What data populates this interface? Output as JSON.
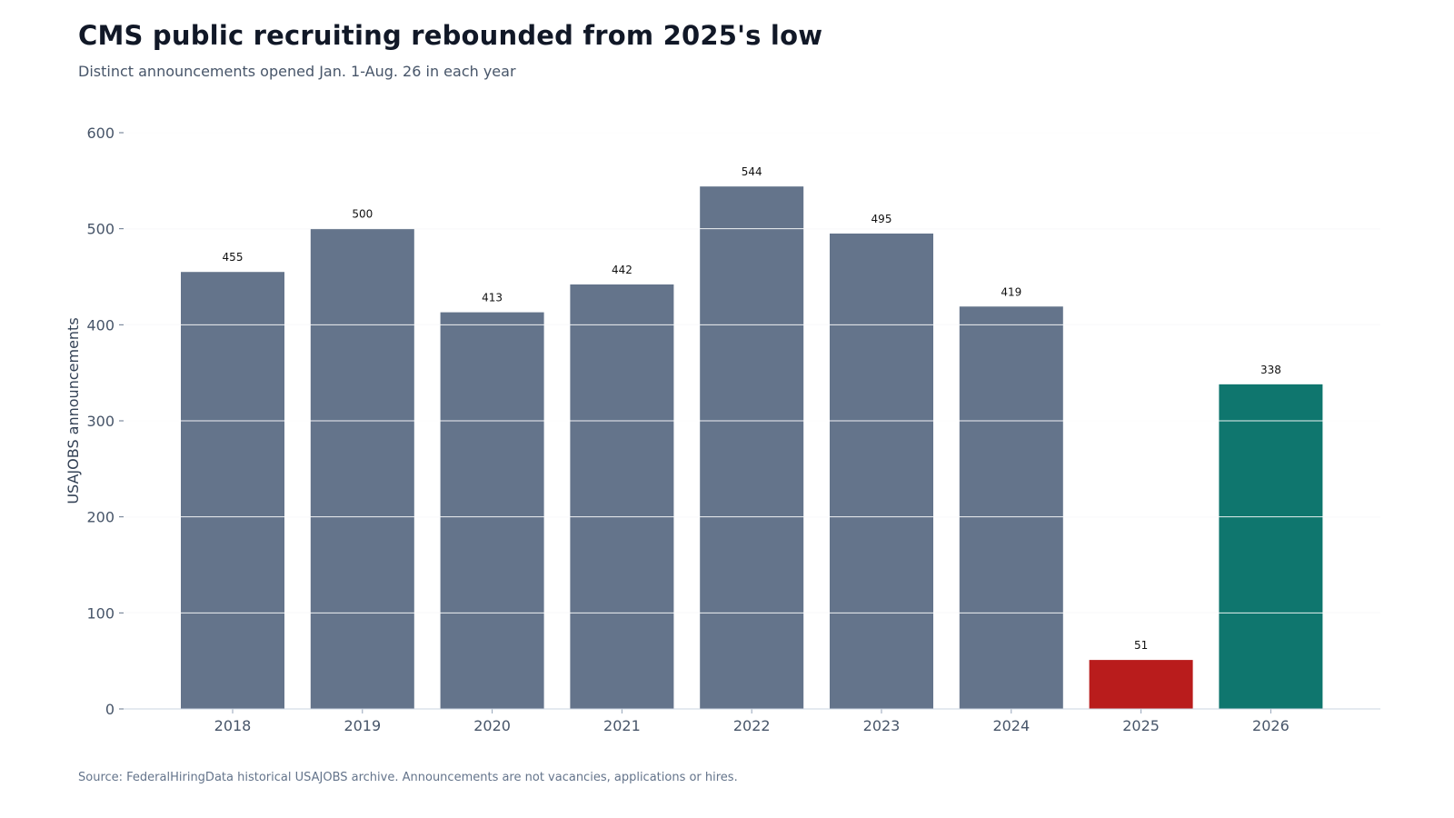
{
  "header": {
    "title": "CMS public recruiting rebounded from 2025's low",
    "subtitle": "Distinct announcements opened Jan. 1-Aug. 26 in each year"
  },
  "footer": {
    "source": "Source: FederalHiringData historical USAJOBS archive. Announcements are not vacancies, applications or hires."
  },
  "chart_data": {
    "type": "bar",
    "title": "CMS public recruiting rebounded from 2025's low",
    "subtitle": "Distinct announcements opened Jan. 1-Aug. 26 in each year",
    "xlabel": "",
    "ylabel": "USAJOBS announcements",
    "categories": [
      "2018",
      "2019",
      "2020",
      "2021",
      "2022",
      "2023",
      "2024",
      "2025",
      "2026"
    ],
    "values": [
      455,
      500,
      413,
      442,
      544,
      495,
      419,
      51,
      338
    ],
    "ylim": [
      0,
      600
    ],
    "yticks": [
      0,
      100,
      200,
      300,
      400,
      500,
      600
    ],
    "grid": true,
    "data_labels": true,
    "colors": {
      "default": "#64748b",
      "highlight_low": "#b91c1c",
      "highlight_latest": "#0f766e",
      "per_bar": [
        "#64748b",
        "#64748b",
        "#64748b",
        "#64748b",
        "#64748b",
        "#64748b",
        "#64748b",
        "#b91c1c",
        "#0f766e"
      ]
    }
  }
}
